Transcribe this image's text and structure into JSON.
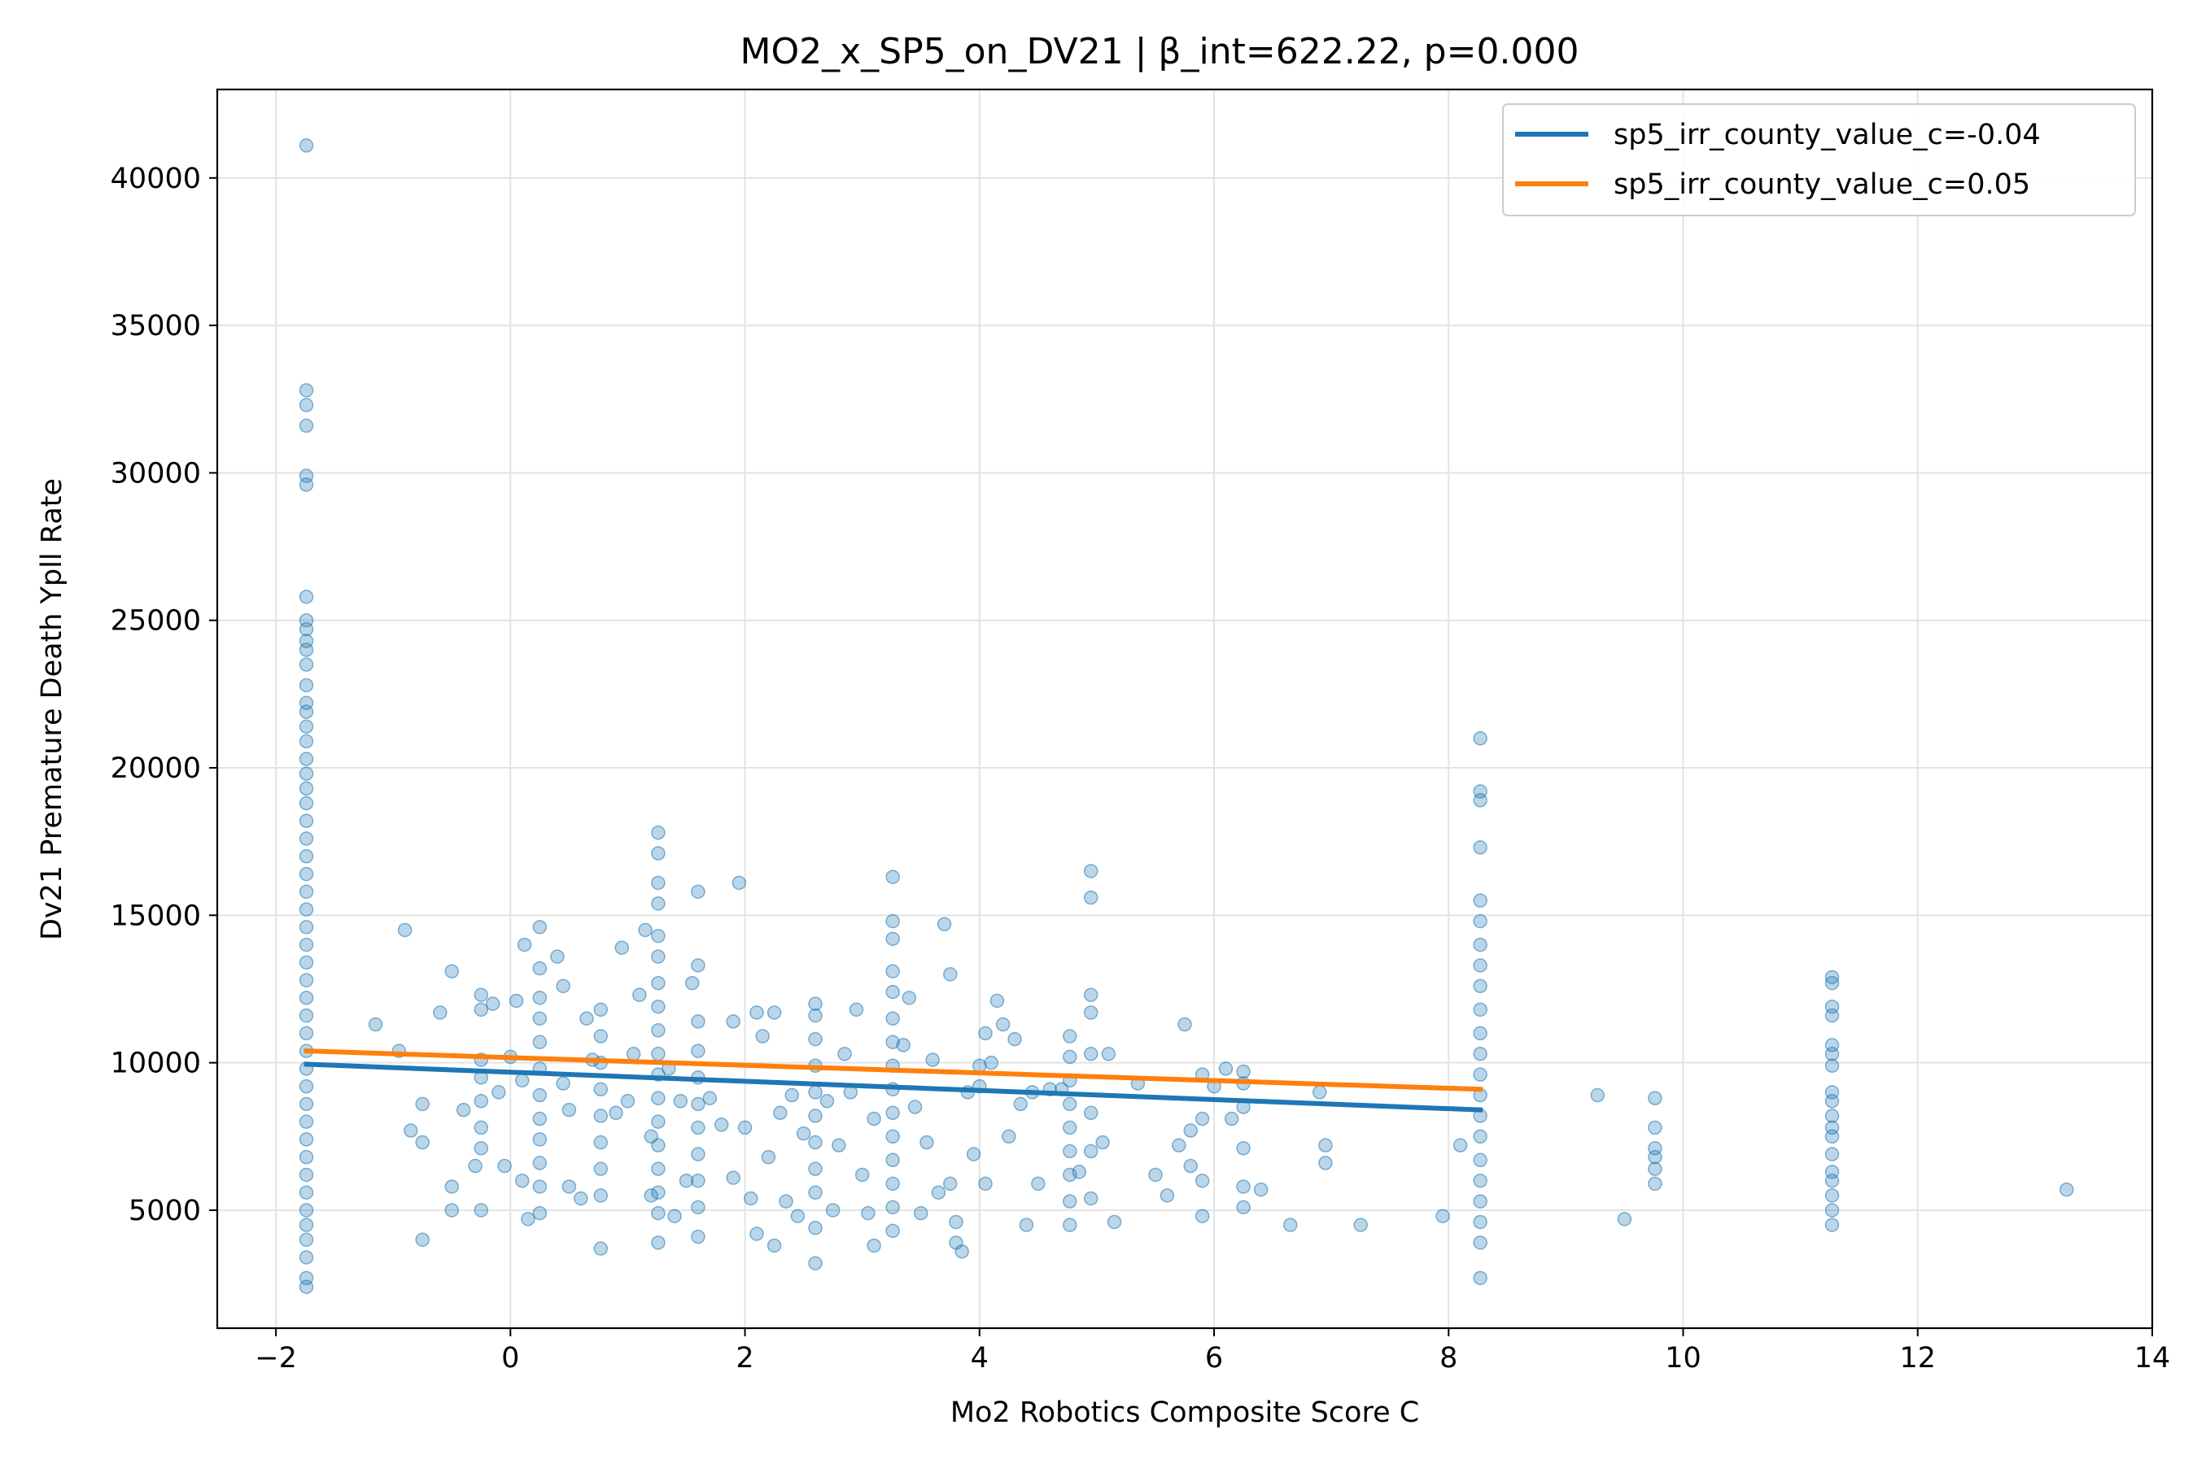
{
  "chart_data": {
    "type": "scatter",
    "title": "MO2_x_SP5_on_DV21 | β_int=622.22, p=0.000",
    "xlabel": "Mo2 Robotics Composite Score C",
    "ylabel": "Dv21 Premature Death Ypll Rate",
    "xlim": [
      -2.5,
      14.0
    ],
    "ylim": [
      1000,
      43000
    ],
    "xticks": [
      -2,
      0,
      2,
      4,
      6,
      8,
      10,
      12,
      14
    ],
    "xtick_labels": [
      "−2",
      "0",
      "2",
      "4",
      "6",
      "8",
      "10",
      "12",
      "14"
    ],
    "yticks": [
      5000,
      10000,
      15000,
      20000,
      25000,
      30000,
      35000,
      40000
    ],
    "ytick_labels": [
      "5000",
      "10000",
      "15000",
      "20000",
      "25000",
      "30000",
      "35000",
      "40000"
    ],
    "grid": true,
    "legend_position": "top-right",
    "scatter_color": "#1f77b4",
    "scatter_points": [
      [
        -1.74,
        41100
      ],
      [
        -1.74,
        32800
      ],
      [
        -1.74,
        32300
      ],
      [
        -1.74,
        31600
      ],
      [
        -1.74,
        29900
      ],
      [
        -1.74,
        29600
      ],
      [
        -1.74,
        25800
      ],
      [
        -1.74,
        25000
      ],
      [
        -1.74,
        24700
      ],
      [
        -1.74,
        24300
      ],
      [
        -1.74,
        24000
      ],
      [
        -1.74,
        23500
      ],
      [
        -1.74,
        22800
      ],
      [
        -1.74,
        22200
      ],
      [
        -1.74,
        21900
      ],
      [
        -1.74,
        21400
      ],
      [
        -1.74,
        20900
      ],
      [
        -1.74,
        20300
      ],
      [
        -1.74,
        19800
      ],
      [
        -1.74,
        19300
      ],
      [
        -1.74,
        18800
      ],
      [
        -1.74,
        18200
      ],
      [
        -1.74,
        17600
      ],
      [
        -1.74,
        17000
      ],
      [
        -1.74,
        16400
      ],
      [
        -1.74,
        15800
      ],
      [
        -1.74,
        15200
      ],
      [
        -1.74,
        14600
      ],
      [
        -1.74,
        14000
      ],
      [
        -1.74,
        13400
      ],
      [
        -1.74,
        12800
      ],
      [
        -1.74,
        12200
      ],
      [
        -1.74,
        11600
      ],
      [
        -1.74,
        11000
      ],
      [
        -1.74,
        10400
      ],
      [
        -1.74,
        9800
      ],
      [
        -1.74,
        9200
      ],
      [
        -1.74,
        8600
      ],
      [
        -1.74,
        8000
      ],
      [
        -1.74,
        7400
      ],
      [
        -1.74,
        6800
      ],
      [
        -1.74,
        6200
      ],
      [
        -1.74,
        5600
      ],
      [
        -1.74,
        5000
      ],
      [
        -1.74,
        4500
      ],
      [
        -1.74,
        4000
      ],
      [
        -1.74,
        3400
      ],
      [
        -1.74,
        2700
      ],
      [
        -1.74,
        2400
      ],
      [
        -1.15,
        11300
      ],
      [
        -0.95,
        10400
      ],
      [
        -0.9,
        14500
      ],
      [
        -0.85,
        7700
      ],
      [
        -0.75,
        8600
      ],
      [
        -0.75,
        7300
      ],
      [
        -0.75,
        4000
      ],
      [
        -0.6,
        11700
      ],
      [
        -0.5,
        13100
      ],
      [
        -0.5,
        5800
      ],
      [
        -0.5,
        5000
      ],
      [
        -0.4,
        8400
      ],
      [
        -0.3,
        6500
      ],
      [
        -0.25,
        12300
      ],
      [
        -0.25,
        11800
      ],
      [
        -0.25,
        10100
      ],
      [
        -0.25,
        9500
      ],
      [
        -0.25,
        8700
      ],
      [
        -0.25,
        7800
      ],
      [
        -0.25,
        7100
      ],
      [
        -0.25,
        5000
      ],
      [
        -0.15,
        12000
      ],
      [
        -0.1,
        9000
      ],
      [
        -0.05,
        6500
      ],
      [
        0.0,
        10200
      ],
      [
        0.05,
        12100
      ],
      [
        0.1,
        9400
      ],
      [
        0.1,
        6000
      ],
      [
        0.12,
        14000
      ],
      [
        0.15,
        4700
      ],
      [
        0.25,
        14600
      ],
      [
        0.25,
        13200
      ],
      [
        0.25,
        12200
      ],
      [
        0.25,
        11500
      ],
      [
        0.25,
        10700
      ],
      [
        0.25,
        9800
      ],
      [
        0.25,
        8900
      ],
      [
        0.25,
        8100
      ],
      [
        0.25,
        7400
      ],
      [
        0.25,
        6600
      ],
      [
        0.25,
        5800
      ],
      [
        0.25,
        4900
      ],
      [
        0.4,
        13600
      ],
      [
        0.45,
        12600
      ],
      [
        0.45,
        9300
      ],
      [
        0.5,
        8400
      ],
      [
        0.5,
        5800
      ],
      [
        0.6,
        5400
      ],
      [
        0.65,
        11500
      ],
      [
        0.7,
        10100
      ],
      [
        0.77,
        11800
      ],
      [
        0.77,
        10900
      ],
      [
        0.77,
        10000
      ],
      [
        0.77,
        9100
      ],
      [
        0.77,
        8200
      ],
      [
        0.77,
        7300
      ],
      [
        0.77,
        6400
      ],
      [
        0.77,
        5500
      ],
      [
        0.77,
        3700
      ],
      [
        0.9,
        8300
      ],
      [
        0.95,
        13900
      ],
      [
        1.0,
        8700
      ],
      [
        1.05,
        10300
      ],
      [
        1.1,
        12300
      ],
      [
        1.15,
        14500
      ],
      [
        1.2,
        7500
      ],
      [
        1.2,
        5500
      ],
      [
        1.26,
        17800
      ],
      [
        1.26,
        17100
      ],
      [
        1.26,
        16100
      ],
      [
        1.26,
        15400
      ],
      [
        1.26,
        14300
      ],
      [
        1.26,
        13600
      ],
      [
        1.26,
        12700
      ],
      [
        1.26,
        11900
      ],
      [
        1.26,
        11100
      ],
      [
        1.26,
        10300
      ],
      [
        1.26,
        9600
      ],
      [
        1.26,
        8800
      ],
      [
        1.26,
        8000
      ],
      [
        1.26,
        7200
      ],
      [
        1.26,
        6400
      ],
      [
        1.26,
        5600
      ],
      [
        1.26,
        4900
      ],
      [
        1.26,
        3900
      ],
      [
        1.35,
        9800
      ],
      [
        1.4,
        4800
      ],
      [
        1.45,
        8700
      ],
      [
        1.5,
        6000
      ],
      [
        1.55,
        12700
      ],
      [
        1.6,
        15800
      ],
      [
        1.6,
        13300
      ],
      [
        1.6,
        11400
      ],
      [
        1.6,
        10400
      ],
      [
        1.6,
        9500
      ],
      [
        1.6,
        8600
      ],
      [
        1.6,
        7800
      ],
      [
        1.6,
        6900
      ],
      [
        1.6,
        6000
      ],
      [
        1.6,
        5100
      ],
      [
        1.6,
        4100
      ],
      [
        1.7,
        8800
      ],
      [
        1.8,
        7900
      ],
      [
        1.9,
        6100
      ],
      [
        1.9,
        11400
      ],
      [
        1.95,
        16100
      ],
      [
        2.0,
        7800
      ],
      [
        2.05,
        5400
      ],
      [
        2.1,
        11700
      ],
      [
        2.1,
        4200
      ],
      [
        2.15,
        10900
      ],
      [
        2.2,
        6800
      ],
      [
        2.25,
        11700
      ],
      [
        2.25,
        3800
      ],
      [
        2.3,
        8300
      ],
      [
        2.35,
        5300
      ],
      [
        2.4,
        8900
      ],
      [
        2.45,
        4800
      ],
      [
        2.5,
        7600
      ],
      [
        2.6,
        12000
      ],
      [
        2.6,
        11600
      ],
      [
        2.6,
        10800
      ],
      [
        2.6,
        9900
      ],
      [
        2.6,
        9000
      ],
      [
        2.6,
        8200
      ],
      [
        2.6,
        7300
      ],
      [
        2.6,
        6400
      ],
      [
        2.6,
        5600
      ],
      [
        2.6,
        4400
      ],
      [
        2.6,
        3200
      ],
      [
        2.7,
        8700
      ],
      [
        2.75,
        5000
      ],
      [
        2.8,
        7200
      ],
      [
        2.85,
        10300
      ],
      [
        2.9,
        9000
      ],
      [
        2.95,
        11800
      ],
      [
        3.0,
        6200
      ],
      [
        3.05,
        4900
      ],
      [
        3.1,
        8100
      ],
      [
        3.1,
        3800
      ],
      [
        3.26,
        16300
      ],
      [
        3.26,
        14800
      ],
      [
        3.26,
        14200
      ],
      [
        3.26,
        13100
      ],
      [
        3.26,
        12400
      ],
      [
        3.26,
        11500
      ],
      [
        3.26,
        10700
      ],
      [
        3.26,
        9900
      ],
      [
        3.26,
        9100
      ],
      [
        3.26,
        8300
      ],
      [
        3.26,
        7500
      ],
      [
        3.26,
        6700
      ],
      [
        3.26,
        5900
      ],
      [
        3.26,
        5100
      ],
      [
        3.26,
        4300
      ],
      [
        3.35,
        10600
      ],
      [
        3.4,
        12200
      ],
      [
        3.45,
        8500
      ],
      [
        3.5,
        4900
      ],
      [
        3.55,
        7300
      ],
      [
        3.6,
        10100
      ],
      [
        3.65,
        5600
      ],
      [
        3.7,
        14700
      ],
      [
        3.75,
        13000
      ],
      [
        3.75,
        5900
      ],
      [
        3.8,
        4600
      ],
      [
        3.8,
        3900
      ],
      [
        3.85,
        3600
      ],
      [
        3.9,
        9000
      ],
      [
        3.95,
        6900
      ],
      [
        4.0,
        9900
      ],
      [
        4.0,
        9200
      ],
      [
        4.05,
        11000
      ],
      [
        4.05,
        5900
      ],
      [
        4.1,
        10000
      ],
      [
        4.15,
        12100
      ],
      [
        4.2,
        11300
      ],
      [
        4.25,
        7500
      ],
      [
        4.3,
        10800
      ],
      [
        4.35,
        8600
      ],
      [
        4.4,
        4500
      ],
      [
        4.45,
        9000
      ],
      [
        4.5,
        5900
      ],
      [
        4.6,
        9100
      ],
      [
        4.7,
        9100
      ],
      [
        4.77,
        10900
      ],
      [
        4.77,
        10200
      ],
      [
        4.77,
        9400
      ],
      [
        4.77,
        8600
      ],
      [
        4.77,
        7800
      ],
      [
        4.77,
        7000
      ],
      [
        4.77,
        6200
      ],
      [
        4.77,
        5300
      ],
      [
        4.77,
        4500
      ],
      [
        4.85,
        6300
      ],
      [
        4.95,
        16500
      ],
      [
        4.95,
        15600
      ],
      [
        4.95,
        12300
      ],
      [
        4.95,
        11700
      ],
      [
        4.95,
        10300
      ],
      [
        4.95,
        8300
      ],
      [
        4.95,
        7000
      ],
      [
        4.95,
        5400
      ],
      [
        5.05,
        7300
      ],
      [
        5.1,
        10300
      ],
      [
        5.15,
        4600
      ],
      [
        5.35,
        9300
      ],
      [
        5.5,
        6200
      ],
      [
        5.6,
        5500
      ],
      [
        5.7,
        7200
      ],
      [
        5.75,
        11300
      ],
      [
        5.8,
        7700
      ],
      [
        5.8,
        6500
      ],
      [
        5.9,
        9600
      ],
      [
        5.9,
        8100
      ],
      [
        5.9,
        6000
      ],
      [
        5.9,
        4800
      ],
      [
        6.0,
        9200
      ],
      [
        6.1,
        9800
      ],
      [
        6.15,
        8100
      ],
      [
        6.25,
        9700
      ],
      [
        6.25,
        9300
      ],
      [
        6.25,
        8500
      ],
      [
        6.25,
        7100
      ],
      [
        6.25,
        5800
      ],
      [
        6.25,
        5100
      ],
      [
        6.4,
        5700
      ],
      [
        6.65,
        4500
      ],
      [
        6.9,
        9000
      ],
      [
        6.95,
        7200
      ],
      [
        6.95,
        6600
      ],
      [
        7.25,
        4500
      ],
      [
        7.95,
        4800
      ],
      [
        8.1,
        7200
      ],
      [
        8.27,
        21000
      ],
      [
        8.27,
        19200
      ],
      [
        8.27,
        18900
      ],
      [
        8.27,
        17300
      ],
      [
        8.27,
        15500
      ],
      [
        8.27,
        14800
      ],
      [
        8.27,
        14000
      ],
      [
        8.27,
        13300
      ],
      [
        8.27,
        12600
      ],
      [
        8.27,
        11800
      ],
      [
        8.27,
        11000
      ],
      [
        8.27,
        10300
      ],
      [
        8.27,
        9600
      ],
      [
        8.27,
        8900
      ],
      [
        8.27,
        8200
      ],
      [
        8.27,
        7500
      ],
      [
        8.27,
        6700
      ],
      [
        8.27,
        6000
      ],
      [
        8.27,
        5300
      ],
      [
        8.27,
        4600
      ],
      [
        8.27,
        3900
      ],
      [
        8.27,
        2700
      ],
      [
        9.27,
        8900
      ],
      [
        9.5,
        4700
      ],
      [
        9.76,
        8800
      ],
      [
        9.76,
        7800
      ],
      [
        9.76,
        7100
      ],
      [
        9.76,
        6800
      ],
      [
        9.76,
        6400
      ],
      [
        9.76,
        5900
      ],
      [
        11.27,
        12900
      ],
      [
        11.27,
        12700
      ],
      [
        11.27,
        11900
      ],
      [
        11.27,
        11600
      ],
      [
        11.27,
        10600
      ],
      [
        11.27,
        10300
      ],
      [
        11.27,
        9900
      ],
      [
        11.27,
        9000
      ],
      [
        11.27,
        8700
      ],
      [
        11.27,
        8200
      ],
      [
        11.27,
        7800
      ],
      [
        11.27,
        7500
      ],
      [
        11.27,
        6900
      ],
      [
        11.27,
        6300
      ],
      [
        11.27,
        6000
      ],
      [
        11.27,
        5500
      ],
      [
        11.27,
        5000
      ],
      [
        11.27,
        4500
      ],
      [
        13.27,
        5700
      ]
    ],
    "series": [
      {
        "name": "sp5_irr_county_value_c=-0.04",
        "color": "#1f77b4",
        "x": [
          -1.74,
          8.27
        ],
        "y": [
          9950,
          8400
        ]
      },
      {
        "name": "sp5_irr_county_value_c=0.05",
        "color": "#ff7f0e",
        "x": [
          -1.74,
          8.27
        ],
        "y": [
          10400,
          9100
        ]
      }
    ]
  }
}
